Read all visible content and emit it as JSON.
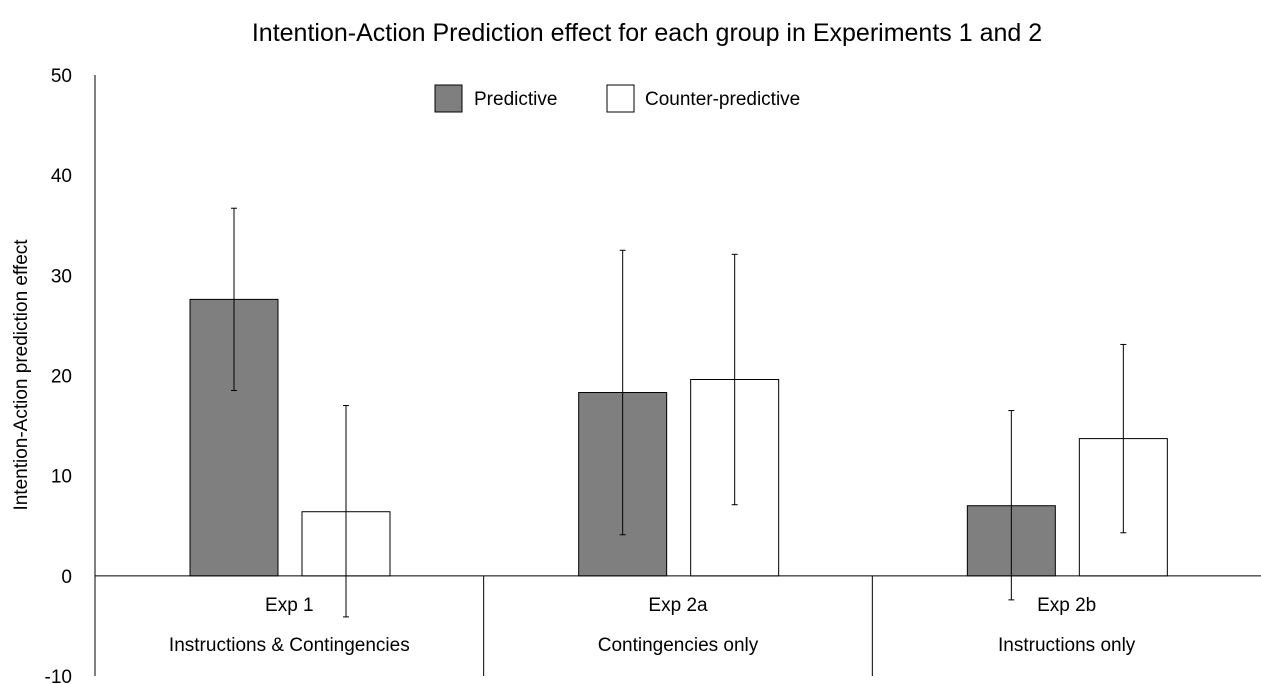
{
  "chart_data": {
    "type": "bar",
    "title": "Intention-Action Prediction effect for each group in Experiments 1 and 2",
    "ylabel": "Intention-Action prediction effect",
    "xlabel": "",
    "ylim": [
      -10,
      50
    ],
    "yticks": [
      50,
      40,
      30,
      20,
      10,
      0,
      -10
    ],
    "grid": false,
    "legend_position": "top",
    "categories": [
      {
        "label": "Exp 1",
        "sublabel": "Instructions & Contingencies"
      },
      {
        "label": "Exp 2a",
        "sublabel": "Contingencies only"
      },
      {
        "label": "Exp 2b",
        "sublabel": "Instructions only"
      }
    ],
    "series": [
      {
        "name": "Predictive",
        "color": "#7f7f7f",
        "values": [
          27.6,
          18.3,
          7.0
        ],
        "error_low": [
          18.5,
          4.1,
          -2.4
        ],
        "error_high": [
          36.7,
          32.5,
          16.5
        ]
      },
      {
        "name": "Counter-predictive",
        "color": "#ffffff",
        "values": [
          6.4,
          19.6,
          13.7
        ],
        "error_low": [
          -4.1,
          7.1,
          4.3
        ],
        "error_high": [
          17.0,
          32.1,
          23.1
        ]
      }
    ]
  }
}
